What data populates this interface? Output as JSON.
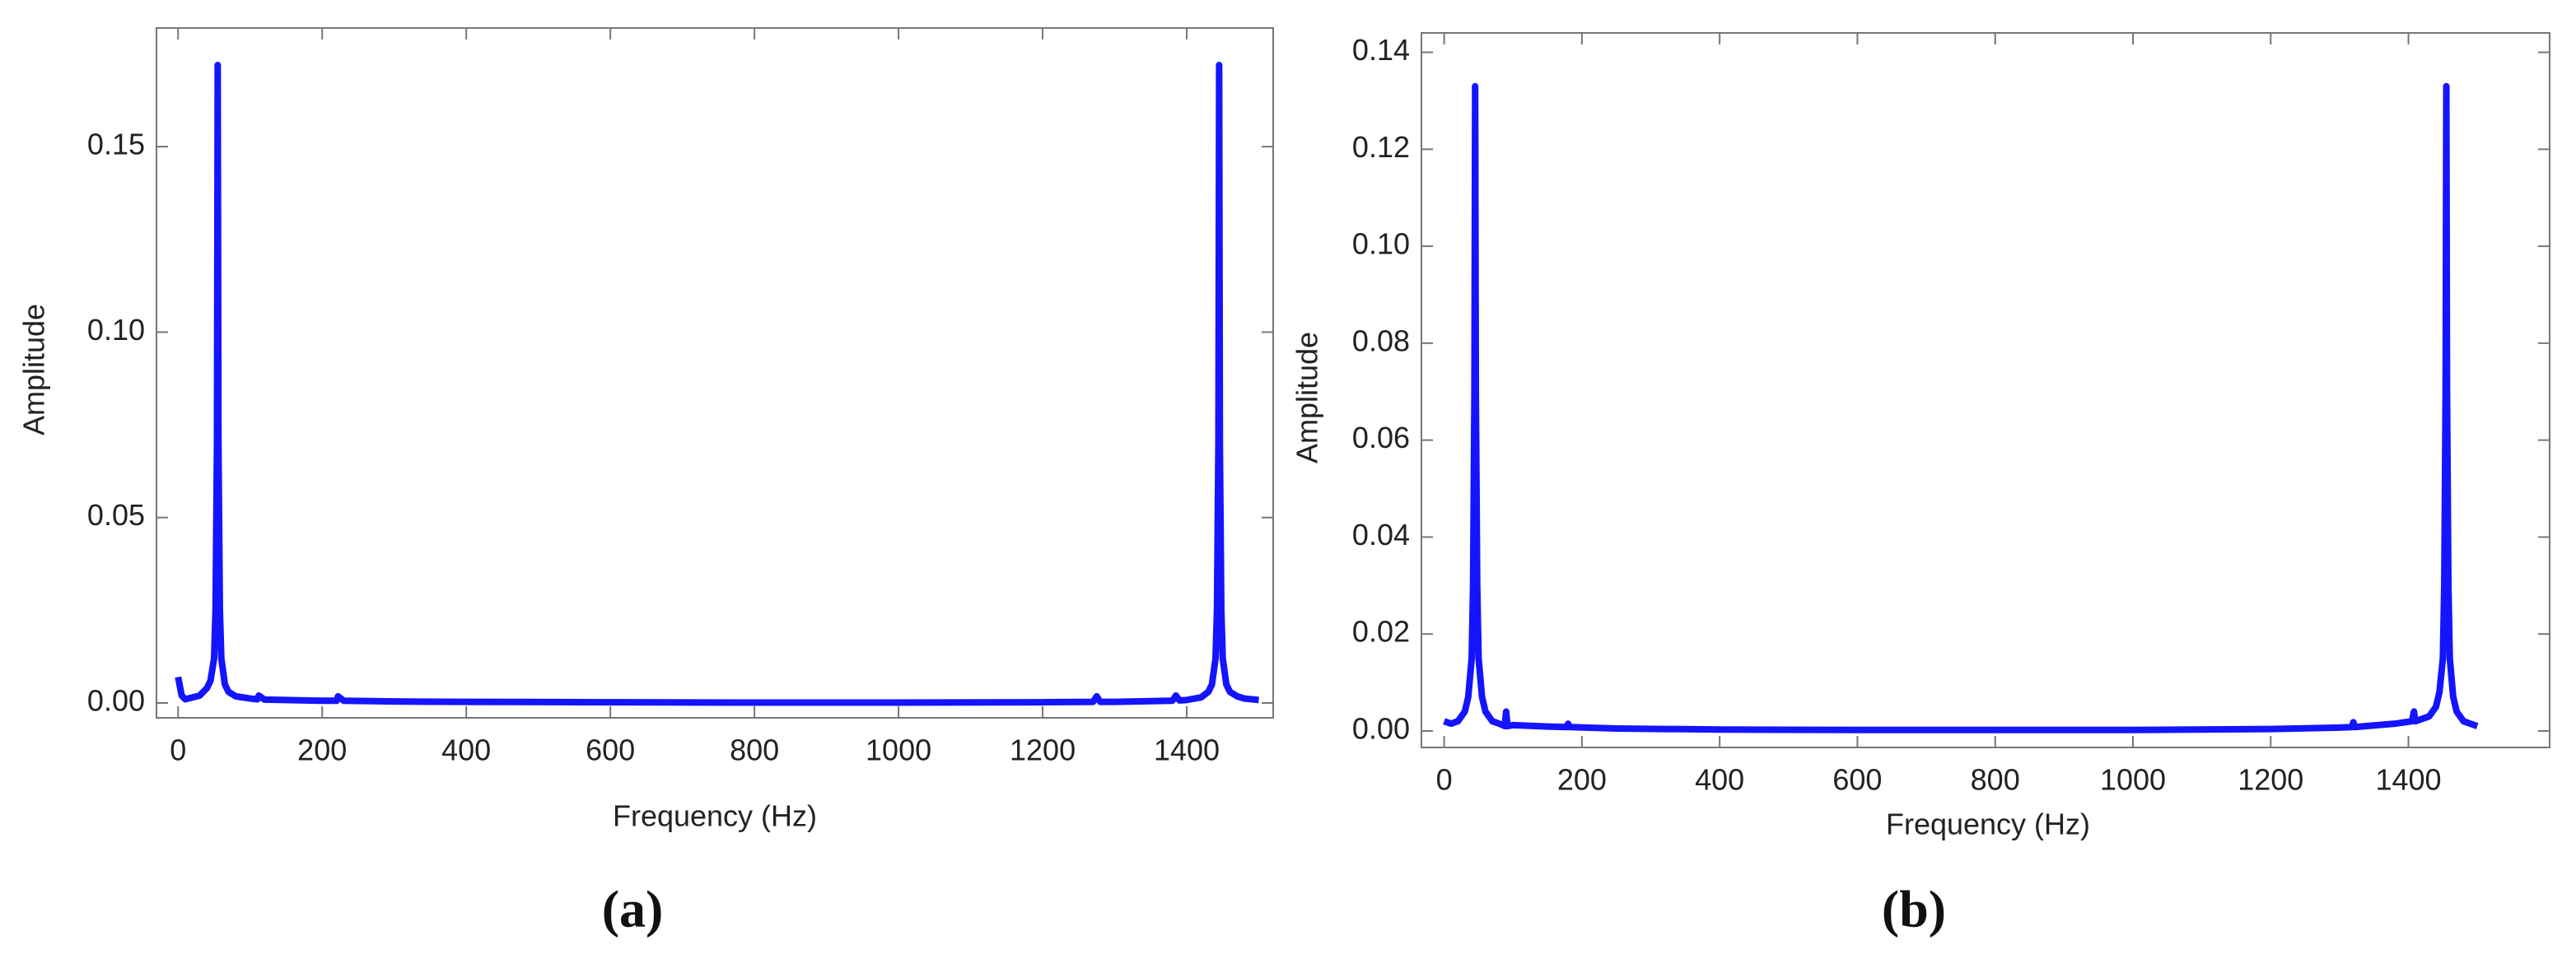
{
  "chart_data": [
    {
      "type": "line",
      "caption": "(a)",
      "xlabel": "Frequency (Hz)",
      "ylabel": "Amplitude",
      "xlim": [
        -30,
        1520
      ],
      "ylim": [
        -0.004,
        0.182
      ],
      "xticks": [
        0,
        200,
        400,
        600,
        800,
        1000,
        1200,
        1400
      ],
      "yticks": [
        {
          "value": 0,
          "label": "0.00"
        },
        {
          "value": 0.05,
          "label": "0.05"
        },
        {
          "value": 0.1,
          "label": "0.10"
        },
        {
          "value": 0.15,
          "label": "0.15"
        }
      ],
      "series": [
        {
          "color": "#1414ff",
          "x": [
            0,
            5,
            10,
            20,
            30,
            40,
            45,
            50,
            52,
            54,
            55,
            56,
            58,
            60,
            65,
            70,
            80,
            100,
            110,
            112,
            120,
            150,
            200,
            220,
            222,
            230,
            300,
            400,
            600,
            800,
            1000,
            1200,
            1270,
            1275,
            1280,
            1300,
            1380,
            1385,
            1390,
            1400,
            1420,
            1430,
            1435,
            1440,
            1442,
            1444,
            1445,
            1446,
            1448,
            1450,
            1455,
            1460,
            1470,
            1480,
            1500
          ],
          "values": [
            0.007,
            0.002,
            0.001,
            0.0015,
            0.002,
            0.004,
            0.006,
            0.012,
            0.025,
            0.07,
            0.172,
            0.07,
            0.025,
            0.012,
            0.005,
            0.003,
            0.0018,
            0.0012,
            0.001,
            0.002,
            0.0009,
            0.0008,
            0.0006,
            0.0006,
            0.0018,
            0.0006,
            0.0004,
            0.0003,
            0.0002,
            0.0001,
            0.0001,
            0.0002,
            0.0003,
            0.0018,
            0.0003,
            0.0003,
            0.0006,
            0.002,
            0.0007,
            0.0008,
            0.0015,
            0.003,
            0.005,
            0.012,
            0.025,
            0.07,
            0.172,
            0.07,
            0.025,
            0.012,
            0.005,
            0.003,
            0.0018,
            0.0012,
            0.0008
          ]
        }
      ]
    },
    {
      "type": "line",
      "caption": "(b)",
      "xlabel": "Frequency (Hz)",
      "ylabel": "Amplitude",
      "xlim": [
        -33,
        1605
      ],
      "ylim": [
        -0.0034,
        0.144
      ],
      "xticks": [
        0,
        200,
        400,
        600,
        800,
        1000,
        1200,
        1400
      ],
      "yticks": [
        {
          "value": 0,
          "label": "0.00"
        },
        {
          "value": 0.02,
          "label": "0.02"
        },
        {
          "value": 0.04,
          "label": "0.04"
        },
        {
          "value": 0.06,
          "label": "0.06"
        },
        {
          "value": 0.08,
          "label": "0.08"
        },
        {
          "value": 0.1,
          "label": "0.10"
        },
        {
          "value": 0.12,
          "label": "0.12"
        },
        {
          "value": 0.14,
          "label": "0.14"
        }
      ],
      "series": [
        {
          "color": "#1414ff",
          "x": [
            0,
            10,
            20,
            30,
            35,
            40,
            42,
            44,
            45,
            46,
            48,
            50,
            55,
            60,
            70,
            80,
            88,
            90,
            92,
            100,
            150,
            178,
            180,
            182,
            250,
            400,
            600,
            800,
            1000,
            1200,
            1300,
            1318,
            1320,
            1322,
            1380,
            1405,
            1408,
            1410,
            1430,
            1440,
            1445,
            1450,
            1452,
            1454,
            1455,
            1456,
            1458,
            1460,
            1465,
            1470,
            1480,
            1500
          ],
          "values": [
            0.002,
            0.0015,
            0.002,
            0.004,
            0.007,
            0.015,
            0.03,
            0.07,
            0.133,
            0.07,
            0.03,
            0.015,
            0.007,
            0.004,
            0.002,
            0.0015,
            0.001,
            0.004,
            0.001,
            0.0012,
            0.0009,
            0.0008,
            0.0015,
            0.0008,
            0.0005,
            0.0003,
            0.0002,
            0.0002,
            0.0002,
            0.0004,
            0.0007,
            0.0008,
            0.0018,
            0.0008,
            0.0015,
            0.002,
            0.004,
            0.002,
            0.003,
            0.005,
            0.008,
            0.015,
            0.03,
            0.07,
            0.133,
            0.07,
            0.03,
            0.015,
            0.007,
            0.004,
            0.002,
            0.001
          ]
        }
      ]
    }
  ]
}
